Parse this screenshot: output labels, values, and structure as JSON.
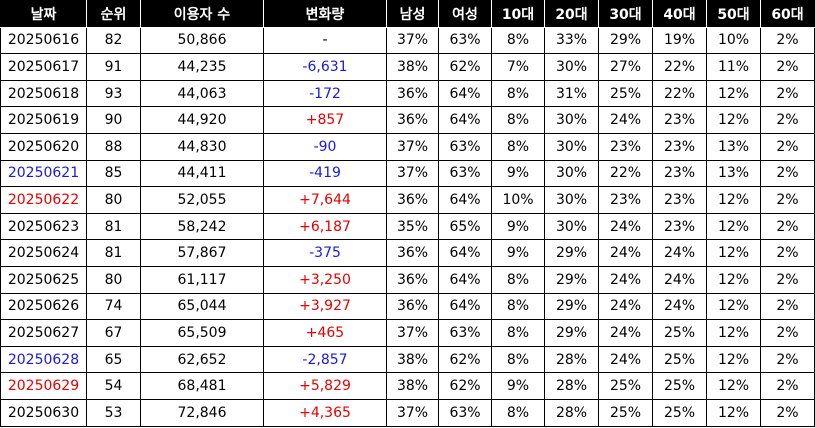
{
  "colors": {
    "header_bg": "#000000",
    "header_text": "#ffffff",
    "negative": "#1a1adb",
    "positive": "#e60000",
    "saturday": "#1a1adb",
    "sunday": "#e60000",
    "default": "#000000"
  },
  "columns": [
    "날짜",
    "순위",
    "이용자 수",
    "변화량",
    "남성",
    "여성",
    "10대",
    "20대",
    "30대",
    "40대",
    "50대",
    "60대"
  ],
  "rows": [
    {
      "date": "20250616",
      "date_color": "default",
      "rank": "82",
      "users": "50,866",
      "change": "-",
      "change_color": "default",
      "male": "37%",
      "female": "63%",
      "a10": "8%",
      "a20": "33%",
      "a30": "29%",
      "a40": "19%",
      "a50": "10%",
      "a60": "2%"
    },
    {
      "date": "20250617",
      "date_color": "default",
      "rank": "91",
      "users": "44,235",
      "change": "-6,631",
      "change_color": "negative",
      "male": "38%",
      "female": "62%",
      "a10": "7%",
      "a20": "30%",
      "a30": "27%",
      "a40": "22%",
      "a50": "11%",
      "a60": "2%"
    },
    {
      "date": "20250618",
      "date_color": "default",
      "rank": "93",
      "users": "44,063",
      "change": "-172",
      "change_color": "negative",
      "male": "36%",
      "female": "64%",
      "a10": "8%",
      "a20": "31%",
      "a30": "25%",
      "a40": "22%",
      "a50": "12%",
      "a60": "2%"
    },
    {
      "date": "20250619",
      "date_color": "default",
      "rank": "90",
      "users": "44,920",
      "change": "+857",
      "change_color": "positive",
      "male": "36%",
      "female": "64%",
      "a10": "8%",
      "a20": "30%",
      "a30": "24%",
      "a40": "23%",
      "a50": "12%",
      "a60": "2%"
    },
    {
      "date": "20250620",
      "date_color": "default",
      "rank": "88",
      "users": "44,830",
      "change": "-90",
      "change_color": "negative",
      "male": "37%",
      "female": "63%",
      "a10": "8%",
      "a20": "30%",
      "a30": "23%",
      "a40": "23%",
      "a50": "13%",
      "a60": "2%"
    },
    {
      "date": "20250621",
      "date_color": "saturday",
      "rank": "85",
      "users": "44,411",
      "change": "-419",
      "change_color": "negative",
      "male": "37%",
      "female": "63%",
      "a10": "9%",
      "a20": "30%",
      "a30": "22%",
      "a40": "23%",
      "a50": "13%",
      "a60": "2%"
    },
    {
      "date": "20250622",
      "date_color": "sunday",
      "rank": "80",
      "users": "52,055",
      "change": "+7,644",
      "change_color": "positive",
      "male": "36%",
      "female": "64%",
      "a10": "10%",
      "a20": "30%",
      "a30": "23%",
      "a40": "23%",
      "a50": "12%",
      "a60": "2%"
    },
    {
      "date": "20250623",
      "date_color": "default",
      "rank": "81",
      "users": "58,242",
      "change": "+6,187",
      "change_color": "positive",
      "male": "35%",
      "female": "65%",
      "a10": "9%",
      "a20": "30%",
      "a30": "24%",
      "a40": "23%",
      "a50": "12%",
      "a60": "2%"
    },
    {
      "date": "20250624",
      "date_color": "default",
      "rank": "81",
      "users": "57,867",
      "change": "-375",
      "change_color": "negative",
      "male": "36%",
      "female": "64%",
      "a10": "9%",
      "a20": "29%",
      "a30": "24%",
      "a40": "24%",
      "a50": "12%",
      "a60": "2%"
    },
    {
      "date": "20250625",
      "date_color": "default",
      "rank": "80",
      "users": "61,117",
      "change": "+3,250",
      "change_color": "positive",
      "male": "36%",
      "female": "64%",
      "a10": "8%",
      "a20": "29%",
      "a30": "24%",
      "a40": "24%",
      "a50": "12%",
      "a60": "2%"
    },
    {
      "date": "20250626",
      "date_color": "default",
      "rank": "74",
      "users": "65,044",
      "change": "+3,927",
      "change_color": "positive",
      "male": "36%",
      "female": "64%",
      "a10": "8%",
      "a20": "29%",
      "a30": "24%",
      "a40": "24%",
      "a50": "12%",
      "a60": "2%"
    },
    {
      "date": "20250627",
      "date_color": "default",
      "rank": "67",
      "users": "65,509",
      "change": "+465",
      "change_color": "positive",
      "male": "37%",
      "female": "63%",
      "a10": "8%",
      "a20": "29%",
      "a30": "24%",
      "a40": "25%",
      "a50": "12%",
      "a60": "2%"
    },
    {
      "date": "20250628",
      "date_color": "saturday",
      "rank": "65",
      "users": "62,652",
      "change": "-2,857",
      "change_color": "negative",
      "male": "38%",
      "female": "62%",
      "a10": "8%",
      "a20": "28%",
      "a30": "24%",
      "a40": "25%",
      "a50": "12%",
      "a60": "2%"
    },
    {
      "date": "20250629",
      "date_color": "sunday",
      "rank": "54",
      "users": "68,481",
      "change": "+5,829",
      "change_color": "positive",
      "male": "38%",
      "female": "62%",
      "a10": "9%",
      "a20": "28%",
      "a30": "25%",
      "a40": "25%",
      "a50": "12%",
      "a60": "2%"
    },
    {
      "date": "20250630",
      "date_color": "default",
      "rank": "53",
      "users": "72,846",
      "change": "+4,365",
      "change_color": "positive",
      "male": "37%",
      "female": "63%",
      "a10": "8%",
      "a20": "28%",
      "a30": "25%",
      "a40": "25%",
      "a50": "12%",
      "a60": "2%"
    }
  ]
}
